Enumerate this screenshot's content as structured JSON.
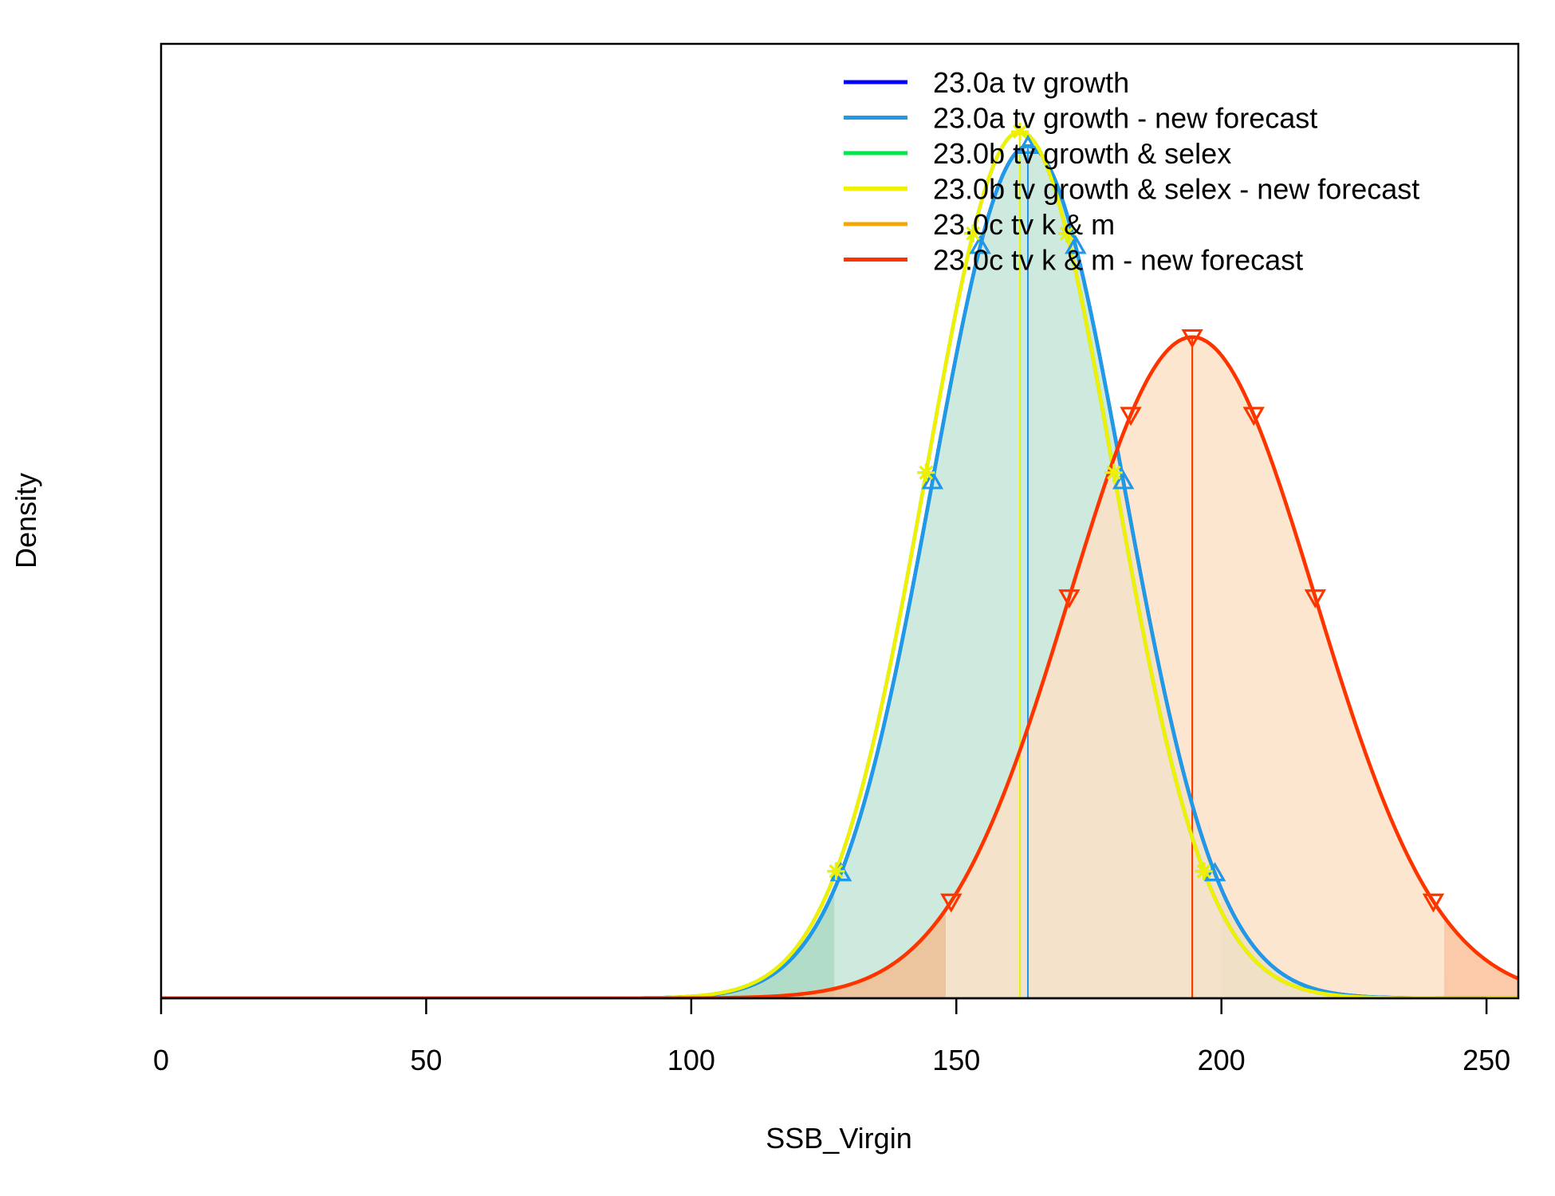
{
  "chart_data": {
    "type": "area",
    "title": "",
    "xlabel": "SSB_Virgin",
    "ylabel": "Density",
    "xlim": [
      0,
      256
    ],
    "xticks": [
      0,
      50,
      100,
      150,
      200,
      250
    ],
    "y_tick_labels": false,
    "grid": false,
    "legend_position": "top-right",
    "series": [
      {
        "name": "23.0a tv growth",
        "color": "#0000ff",
        "mean": 163.5,
        "sd": 18.0,
        "marker": "triangle-up",
        "ci95": [
          127,
          200
        ]
      },
      {
        "name": "23.0a tv growth - new forecast",
        "color": "#1e9ae6",
        "mean": 163.5,
        "sd": 18.0,
        "marker": "triangle-up",
        "ci95": [
          127,
          200
        ]
      },
      {
        "name": "23.0b tv growth & selex",
        "color": "#00e64d",
        "mean": 162.0,
        "sd": 17.7,
        "marker": "asterisk",
        "ci95": [
          126,
          198
        ]
      },
      {
        "name": "23.0b tv growth & selex - new forecast",
        "color": "#f0f000",
        "mean": 162.0,
        "sd": 17.7,
        "marker": "asterisk",
        "ci95": [
          126,
          198
        ]
      },
      {
        "name": "23.0c tv k & m",
        "color": "#f5a600",
        "mean": 194.5,
        "sd": 23.2,
        "marker": "triangle-down",
        "ci95": [
          148,
          242
        ]
      },
      {
        "name": "23.0c tv k & m - new forecast",
        "color": "#ff3300",
        "mean": 194.5,
        "sd": 23.2,
        "marker": "triangle-down",
        "ci95": [
          148,
          242
        ]
      }
    ],
    "fills": [
      "#c3e4d6",
      "#fde0c6"
    ]
  }
}
